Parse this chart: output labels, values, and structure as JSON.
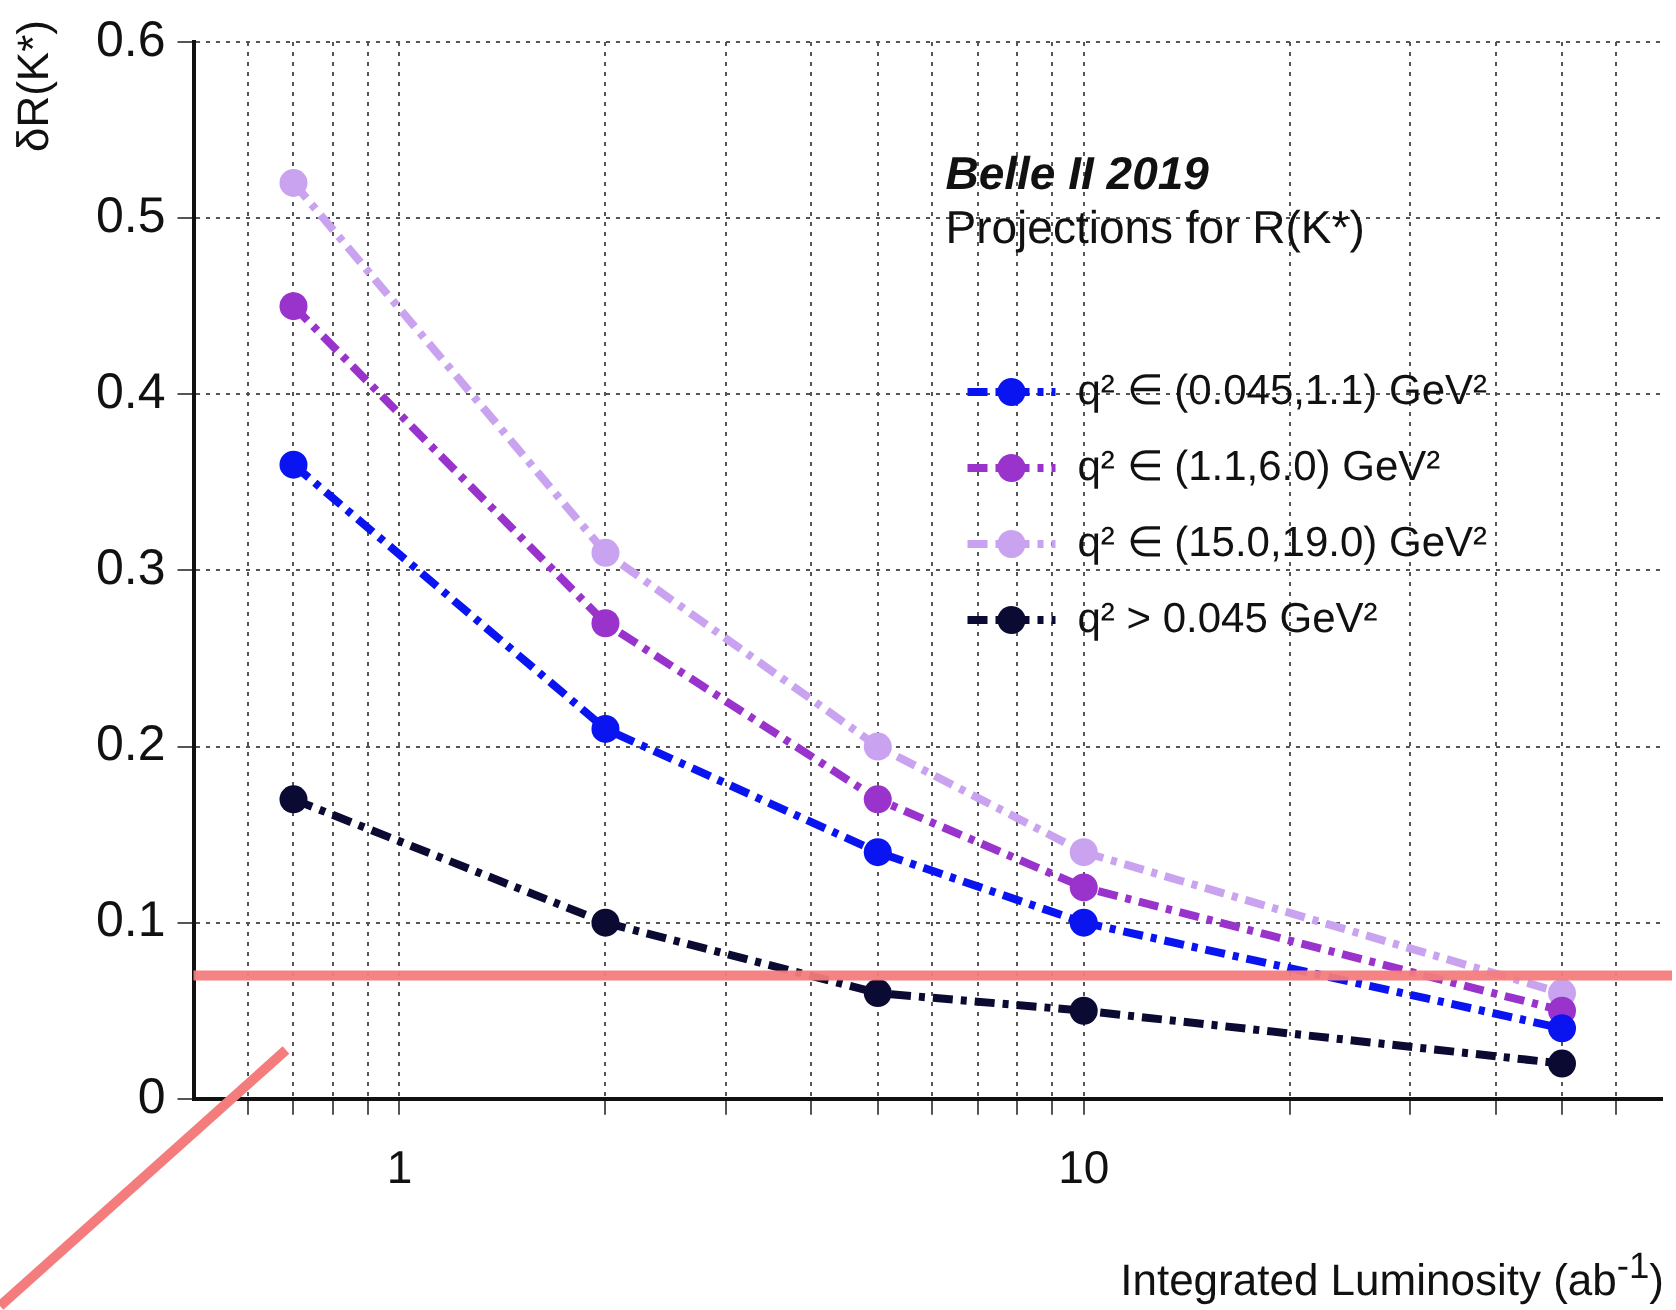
{
  "chart_data": {
    "type": "line",
    "xlabel": "Integrated Luminosity (ab$^{-1}$)",
    "ylabel": "δR(K*)",
    "annotations": [
      "Belle II 2019",
      "Projections for R(K*)"
    ],
    "x": [
      0.7,
      2,
      5,
      10,
      50
    ],
    "series": [
      {
        "name": "q² ∈ (0.045,1.1) GeV²",
        "color": "#0a14f0",
        "values": [
          0.36,
          0.21,
          0.14,
          0.1,
          0.04
        ]
      },
      {
        "name": "q² ∈ (1.1,6.0) GeV²",
        "color": "#9933cc",
        "values": [
          0.45,
          0.27,
          0.17,
          0.12,
          0.05
        ]
      },
      {
        "name": "q² ∈ (15.0,19.0) GeV²",
        "color": "#c9a3f0",
        "values": [
          0.52,
          0.31,
          0.2,
          0.14,
          0.06
        ]
      },
      {
        "name": "q² > 0.045 GeV²",
        "color": "#0a0a33",
        "values": [
          0.17,
          0.1,
          0.06,
          0.05,
          0.02
        ]
      }
    ],
    "log": "x",
    "xlim": [
      0.5,
      70
    ],
    "xticks": [
      {
        "value": 0.6,
        "label": null
      },
      {
        "value": 0.7,
        "label": null
      },
      {
        "value": 0.8,
        "label": null
      },
      {
        "value": 0.9,
        "label": null
      },
      1,
      {
        "value": 2,
        "label": null
      },
      {
        "value": 3,
        "label": null
      },
      {
        "value": 4,
        "label": null
      },
      {
        "value": 5,
        "label": null
      },
      {
        "value": 6,
        "label": null
      },
      {
        "value": 7,
        "label": null
      },
      {
        "value": 8,
        "label": null
      },
      {
        "value": 9,
        "label": null
      },
      10,
      {
        "value": 20,
        "label": null
      },
      {
        "value": 30,
        "label": null
      },
      {
        "value": 40,
        "label": null
      },
      {
        "value": 50,
        "label": null
      },
      {
        "value": 60,
        "label": null
      }
    ],
    "ylim": [
      0,
      0.6
    ],
    "yticks": [
      0,
      0.1,
      0.2,
      0.3,
      0.4,
      0.5,
      0.6
    ],
    "ref_lines": [
      {
        "axis": "y",
        "value": 0.07,
        "color": "#f47c7c"
      }
    ],
    "grid": true,
    "legend": "top right",
    "marker": "circle",
    "line_style": "dashed"
  }
}
